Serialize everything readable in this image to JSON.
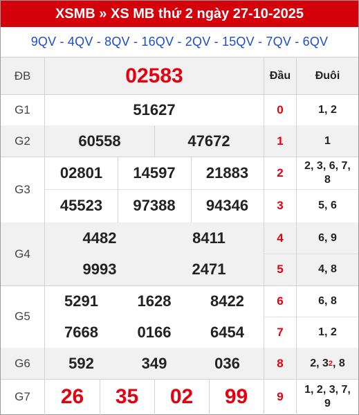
{
  "header": {
    "title": "XSMB » XS MB thứ 2 ngày 27-10-2025"
  },
  "codes": "9QV - 4QV - 8QV - 16QV - 2QV - 15QV - 7QV - 6QV",
  "columns": {
    "dau": "Đầu",
    "duoi": "Đuôi"
  },
  "prizes": {
    "db": {
      "label": "ĐB",
      "numbers": [
        "02583"
      ]
    },
    "g1": {
      "label": "G1",
      "numbers": [
        "51627"
      ]
    },
    "g2": {
      "label": "G2",
      "numbers": [
        "60558",
        "47672"
      ]
    },
    "g3": {
      "label": "G3",
      "numbers": [
        "02801",
        "14597",
        "21883",
        "45523",
        "97388",
        "94346"
      ]
    },
    "g4": {
      "label": "G4",
      "numbers": [
        "4482",
        "8411",
        "9993",
        "2471"
      ]
    },
    "g5": {
      "label": "G5",
      "numbers": [
        "5291",
        "1628",
        "8422",
        "7668",
        "0166",
        "6454"
      ]
    },
    "g6": {
      "label": "G6",
      "numbers": [
        "592",
        "349",
        "036"
      ]
    },
    "g7": {
      "label": "G7",
      "numbers": [
        "26",
        "35",
        "02",
        "99"
      ]
    }
  },
  "loto": [
    {
      "dau": "0",
      "duoi": "1, 2"
    },
    {
      "dau": "1",
      "duoi": "1"
    },
    {
      "dau": "2",
      "duoi": "2, 3, 6, 7, 8"
    },
    {
      "dau": "3",
      "duoi": "5, 6"
    },
    {
      "dau": "4",
      "duoi": "6, 9"
    },
    {
      "dau": "5",
      "duoi": "4, 8"
    },
    {
      "dau": "6",
      "duoi": "6, 8"
    },
    {
      "dau": "7",
      "duoi": "1, 2"
    },
    {
      "dau": "8",
      "duoi_a": "2, 3",
      "duoi_sup": "2",
      "duoi_b": ", 8"
    },
    {
      "dau": "9",
      "duoi": "1, 2, 3, 7, 9"
    }
  ],
  "colors": {
    "header_bg": "#d4000a",
    "codes_text": "#1c4bd1",
    "accent_red": "#e4000f"
  }
}
